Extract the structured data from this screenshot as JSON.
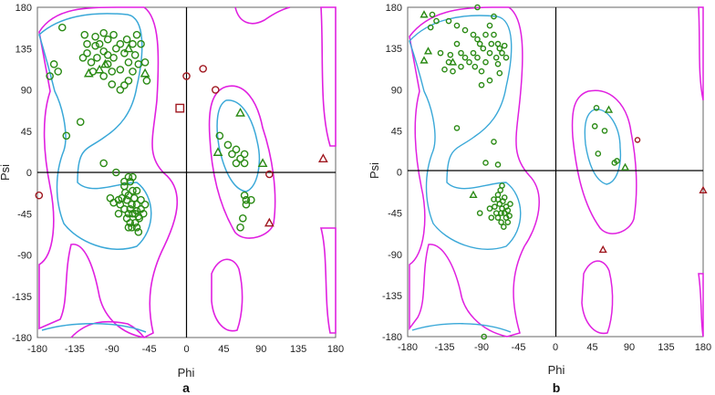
{
  "chart_data": [
    {
      "type": "scatter",
      "panel_label": "a",
      "xlabel": "Phi",
      "ylabel": "Psi",
      "xlim": [
        -180,
        180
      ],
      "ylim": [
        -180,
        180
      ],
      "xticks": [
        "-180",
        "-135",
        "-90",
        "-45",
        "0",
        "45",
        "90",
        "135",
        "180"
      ],
      "yticks": [
        "180",
        "135",
        "90",
        "45",
        "0",
        "-45",
        "-90",
        "-135",
        "-180"
      ],
      "colors": {
        "favoured": "#2a8a14",
        "outlier": "#a01820",
        "core_contour": "#3aa8d8",
        "allowed_contour": "#e020e0"
      },
      "series": [
        {
          "role": "favoured",
          "marker": "circle",
          "points": [
            [
              -150,
              158
            ],
            [
              -160,
              118
            ],
            [
              -155,
              110
            ],
            [
              -123,
              150
            ],
            [
              -110,
              148
            ],
            [
              -100,
              152
            ],
            [
              -95,
              145
            ],
            [
              -88,
              150
            ],
            [
              -80,
              140
            ],
            [
              -72,
              145
            ],
            [
              -60,
              150
            ],
            [
              -55,
              140
            ],
            [
              -50,
              120
            ],
            [
              -48,
              100
            ],
            [
              -120,
              130
            ],
            [
              -115,
              120
            ],
            [
              -108,
              125
            ],
            [
              -100,
              132
            ],
            [
              -95,
              118
            ],
            [
              -90,
              110
            ],
            [
              -88,
              125
            ],
            [
              -80,
              112
            ],
            [
              -75,
              130
            ],
            [
              -70,
              120
            ],
            [
              -65,
              110
            ],
            [
              -62,
              128
            ],
            [
              -120,
              140
            ],
            [
              -110,
              138
            ],
            [
              -125,
              125
            ],
            [
              -100,
              105
            ],
            [
              -90,
              96
            ],
            [
              -80,
              90
            ],
            [
              -70,
              100
            ],
            [
              -58,
              118
            ],
            [
              -105,
              140
            ],
            [
              -85,
              135
            ],
            [
              -75,
              95
            ],
            [
              -65,
              140
            ],
            [
              -95,
              128
            ],
            [
              -113,
              110
            ],
            [
              -165,
              105
            ],
            [
              -128,
              55
            ],
            [
              -145,
              40
            ],
            [
              -100,
              10
            ],
            [
              -85,
              0
            ],
            [
              -70,
              -5
            ],
            [
              -75,
              -15
            ],
            [
              -72,
              -30
            ],
            [
              -68,
              -40
            ],
            [
              -65,
              -45
            ],
            [
              -62,
              -55
            ],
            [
              -60,
              -35
            ],
            [
              -58,
              -48
            ],
            [
              -55,
              -40
            ],
            [
              -70,
              -25
            ],
            [
              -78,
              -28
            ],
            [
              -65,
              -20
            ],
            [
              -68,
              -55
            ],
            [
              -60,
              -60
            ],
            [
              -72,
              -50
            ],
            [
              -75,
              -40
            ],
            [
              -66,
              -35
            ],
            [
              -62,
              -45
            ],
            [
              -80,
              -35
            ],
            [
              -70,
              -45
            ],
            [
              -63,
              -28
            ],
            [
              -57,
              -50
            ],
            [
              -66,
              -60
            ],
            [
              -55,
              -30
            ],
            [
              -74,
              -22
            ],
            [
              -68,
              -10
            ],
            [
              -60,
              -20
            ],
            [
              -65,
              -5
            ],
            [
              -52,
              -45
            ],
            [
              -70,
              -60
            ],
            [
              -82,
              -45
            ],
            [
              -50,
              -35
            ],
            [
              -60,
              -42
            ],
            [
              -75,
              -10
            ],
            [
              -92,
              -28
            ],
            [
              -88,
              -33
            ],
            [
              -82,
              -30
            ],
            [
              -58,
              -65
            ],
            [
              40,
              40
            ],
            [
              50,
              30
            ],
            [
              55,
              20
            ],
            [
              60,
              10
            ],
            [
              65,
              15
            ],
            [
              70,
              20
            ],
            [
              70,
              -25
            ],
            [
              72,
              -30
            ],
            [
              68,
              -50
            ],
            [
              65,
              -60
            ],
            [
              72,
              -35
            ],
            [
              78,
              -30
            ],
            [
              70,
              10
            ],
            [
              60,
              25
            ]
          ]
        },
        {
          "role": "favoured",
          "marker": "triangle",
          "points": [
            [
              -118,
              108
            ],
            [
              -105,
              112
            ],
            [
              -98,
              118
            ],
            [
              -70,
              135
            ],
            [
              -50,
              108
            ],
            [
              38,
              22
            ],
            [
              65,
              65
            ],
            [
              92,
              10
            ]
          ]
        },
        {
          "role": "outlier",
          "marker": "circle",
          "points": [
            [
              0,
              105
            ],
            [
              20,
              113
            ],
            [
              35,
              90
            ],
            [
              100,
              -2
            ],
            [
              -178,
              -25
            ]
          ]
        },
        {
          "role": "outlier",
          "marker": "triangle",
          "points": [
            [
              165,
              15
            ],
            [
              100,
              -55
            ]
          ]
        },
        {
          "role": "outlier",
          "marker": "square",
          "points": [
            [
              -8,
              70
            ]
          ]
        }
      ]
    },
    {
      "type": "scatter",
      "panel_label": "b",
      "xlabel": "Phi",
      "ylabel": "Psi",
      "xlim": [
        -180,
        180
      ],
      "ylim": [
        -180,
        180
      ],
      "xticks": [
        "-180",
        "-135",
        "-90",
        "-45",
        "0",
        "45",
        "90",
        "135",
        "180"
      ],
      "yticks": [
        "180",
        "135",
        "90",
        "45",
        "0",
        "-45",
        "-90",
        "-135",
        "-180"
      ],
      "colors": {
        "favoured": "#2a8a14",
        "outlier": "#a01820",
        "core_contour": "#3aa8d8",
        "allowed_contour": "#e020e0"
      },
      "series": [
        {
          "role": "favoured",
          "marker": "circle",
          "points": [
            [
              -150,
              172
            ],
            [
              -145,
              165
            ],
            [
              -152,
              158
            ],
            [
              -130,
              165
            ],
            [
              -120,
              160
            ],
            [
              -110,
              155
            ],
            [
              -100,
              150
            ],
            [
              -95,
              145
            ],
            [
              -92,
              140
            ],
            [
              -88,
              135
            ],
            [
              -85,
              150
            ],
            [
              -80,
              160
            ],
            [
              -75,
              150
            ],
            [
              -70,
              140
            ],
            [
              -65,
              130
            ],
            [
              -60,
              125
            ],
            [
              -120,
              140
            ],
            [
              -115,
              130
            ],
            [
              -110,
              125
            ],
            [
              -105,
              120
            ],
            [
              -100,
              130
            ],
            [
              -98,
              115
            ],
            [
              -95,
              125
            ],
            [
              -90,
              110
            ],
            [
              -85,
              120
            ],
            [
              -80,
              130
            ],
            [
              -78,
              140
            ],
            [
              -72,
              125
            ],
            [
              -70,
              118
            ],
            [
              -68,
              135
            ],
            [
              -130,
              120
            ],
            [
              -128,
              128
            ],
            [
              -140,
              130
            ],
            [
              -125,
              110
            ],
            [
              -115,
              115
            ],
            [
              -135,
              112
            ],
            [
              -75,
              170
            ],
            [
              -62,
              138
            ],
            [
              -95,
              180
            ],
            [
              -120,
              48
            ],
            [
              -75,
              33
            ],
            [
              -65,
              -15
            ],
            [
              -70,
              -25
            ],
            [
              -68,
              -35
            ],
            [
              -65,
              -40
            ],
            [
              -62,
              -45
            ],
            [
              -60,
              -50
            ],
            [
              -58,
              -42
            ],
            [
              -72,
              -45
            ],
            [
              -70,
              -30
            ],
            [
              -66,
              -55
            ],
            [
              -64,
              -32
            ],
            [
              -74,
              -38
            ],
            [
              -62,
              -28
            ],
            [
              -60,
              -38
            ],
            [
              -56,
              -48
            ],
            [
              -70,
              -50
            ],
            [
              -75,
              -30
            ],
            [
              -63,
              -60
            ],
            [
              -58,
              -55
            ],
            [
              -67,
              -20
            ],
            [
              -80,
              -40
            ],
            [
              -55,
              -35
            ],
            [
              -66,
              -45
            ],
            [
              -78,
              -50
            ],
            [
              -92,
              -45
            ],
            [
              -85,
              10
            ],
            [
              -70,
              8
            ],
            [
              -90,
              95
            ],
            [
              -80,
              100
            ],
            [
              -68,
              108
            ],
            [
              -87,
              -180
            ],
            [
              50,
              70
            ],
            [
              48,
              50
            ],
            [
              60,
              45
            ],
            [
              52,
              20
            ],
            [
              72,
              10
            ],
            [
              75,
              12
            ]
          ]
        },
        {
          "role": "favoured",
          "marker": "triangle",
          "points": [
            [
              -160,
              172
            ],
            [
              -155,
              132
            ],
            [
              -160,
              122
            ],
            [
              -125,
              120
            ],
            [
              -100,
              -25
            ],
            [
              65,
              68
            ],
            [
              85,
              5
            ]
          ]
        },
        {
          "role": "outlier",
          "marker": "circle",
          "points": [
            [
              100,
              35
            ]
          ]
        },
        {
          "role": "outlier",
          "marker": "triangle",
          "points": [
            [
              58,
              -85
            ],
            [
              180,
              -20
            ]
          ]
        }
      ]
    }
  ]
}
